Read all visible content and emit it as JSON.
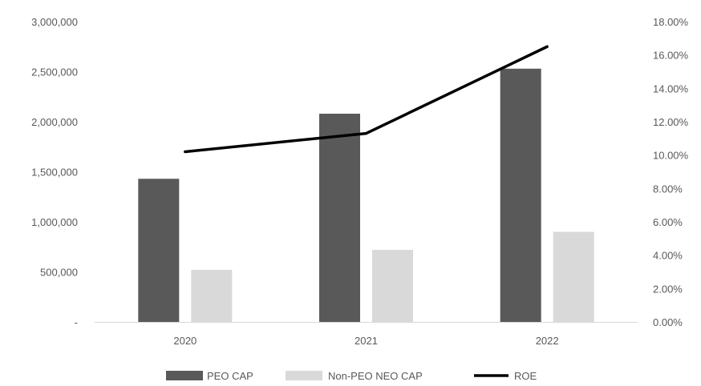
{
  "chart_data": {
    "type": "bar",
    "categories": [
      "2020",
      "2021",
      "2022"
    ],
    "series": [
      {
        "name": "PEO CAP",
        "type": "bar",
        "axis": "left",
        "color": "#595959",
        "values": [
          1430000,
          2080000,
          2530000
        ]
      },
      {
        "name": "Non-PEO NEO CAP",
        "type": "bar",
        "axis": "left",
        "color": "#d9d9d9",
        "values": [
          520000,
          720000,
          900000
        ]
      },
      {
        "name": "ROE",
        "type": "line",
        "axis": "right",
        "color": "#000000",
        "values": [
          10.2,
          11.3,
          16.5
        ]
      }
    ],
    "left_axis": {
      "ylim": [
        0,
        3000000
      ],
      "ticks": [
        0,
        500000,
        1000000,
        1500000,
        2000000,
        2500000,
        3000000
      ],
      "tick_labels": [
        "-",
        "500,000",
        "1,000,000",
        "1,500,000",
        "2,000,000",
        "2,500,000",
        "3,000,000"
      ]
    },
    "right_axis": {
      "ylim": [
        0,
        18
      ],
      "ticks": [
        0,
        2,
        4,
        6,
        8,
        10,
        12,
        14,
        16,
        18
      ],
      "tick_labels": [
        "0.00%",
        "2.00%",
        "4.00%",
        "6.00%",
        "8.00%",
        "10.00%",
        "12.00%",
        "14.00%",
        "16.00%",
        "18.00%"
      ]
    },
    "grid": false,
    "legend": "bottom",
    "title": "",
    "xlabel": "",
    "ylabel": ""
  }
}
